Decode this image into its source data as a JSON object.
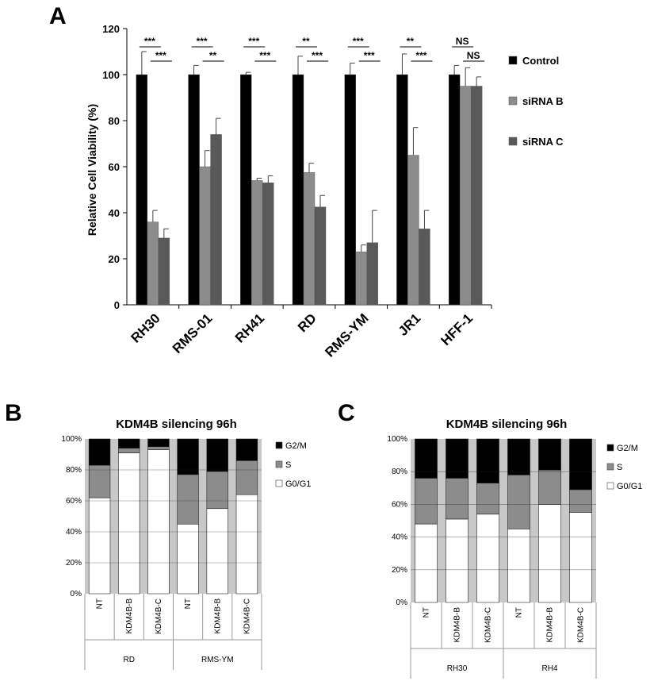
{
  "chart_data": [
    {
      "panel": "A",
      "type": "bar",
      "title": "",
      "xlabel": "",
      "ylabel": "Relative Cell Viability (%)",
      "ylim": [
        0,
        120
      ],
      "yticks": [
        0,
        20,
        40,
        60,
        80,
        100,
        120
      ],
      "categories": [
        "RH30",
        "RMS-01",
        "RH41",
        "RD",
        "RMS-YM",
        "JR1",
        "HFF-1"
      ],
      "series": [
        {
          "name": "Control",
          "color": "#000000",
          "values": [
            100,
            100,
            100,
            100,
            100,
            100,
            100
          ],
          "errors": [
            10,
            4,
            1,
            8,
            5,
            9,
            4
          ]
        },
        {
          "name": "siRNA B",
          "color": "#8c8c8c",
          "values": [
            36,
            60,
            54,
            57.5,
            23,
            65,
            95
          ],
          "errors": [
            5,
            7,
            1,
            4,
            3,
            12,
            8
          ]
        },
        {
          "name": "siRNA C",
          "color": "#595959",
          "values": [
            29,
            74,
            53,
            42.5,
            27,
            33,
            95
          ],
          "errors": [
            4,
            7,
            3,
            5,
            14,
            8,
            4
          ]
        }
      ],
      "significance": [
        {
          "category": "RH30",
          "control_vs_b": "***",
          "control_vs_c": "***"
        },
        {
          "category": "RMS-01",
          "control_vs_b": "***",
          "control_vs_c": "**"
        },
        {
          "category": "RH41",
          "control_vs_b": "***",
          "control_vs_c": "***"
        },
        {
          "category": "RD",
          "control_vs_b": "**",
          "control_vs_c": "***"
        },
        {
          "category": "RMS-YM",
          "control_vs_b": "***",
          "control_vs_c": "***"
        },
        {
          "category": "JR1",
          "control_vs_b": "**",
          "control_vs_c": "***"
        },
        {
          "category": "HFF-1",
          "control_vs_b": "NS",
          "control_vs_c": "NS"
        }
      ],
      "legend": "right"
    },
    {
      "panel": "B",
      "type": "bar",
      "stacked": true,
      "title": "KDM4B silencing 96h",
      "ylim": [
        0,
        100
      ],
      "yticks": [
        "0%",
        "20%",
        "40%",
        "60%",
        "80%",
        "100%"
      ],
      "categories": [
        "NT",
        "KDM4B-B",
        "KDM4B-C",
        "NT",
        "KDM4B-B",
        "KDM4B-C"
      ],
      "groups": [
        {
          "name": "RD",
          "size": 3
        },
        {
          "name": "RMS-YM",
          "size": 3
        }
      ],
      "series": [
        {
          "name": "G0/G1",
          "color": "#ffffff",
          "values": [
            62,
            91,
            93,
            45,
            55,
            64
          ]
        },
        {
          "name": "S",
          "color": "#8c8c8c",
          "values": [
            21,
            3,
            2,
            32,
            24,
            22
          ]
        },
        {
          "name": "G2/M",
          "color": "#000000",
          "values": [
            17,
            6,
            5,
            23,
            21,
            14
          ]
        }
      ],
      "legend": "right"
    },
    {
      "panel": "C",
      "type": "bar",
      "stacked": true,
      "title": "KDM4B silencing 96h",
      "ylim": [
        0,
        100
      ],
      "yticks": [
        "0%",
        "20%",
        "40%",
        "60%",
        "80%",
        "100%"
      ],
      "categories": [
        "NT",
        "KDM4B-B",
        "KDM4B-C",
        "NT",
        "KDM4B-B",
        "KDM4B-C"
      ],
      "groups": [
        {
          "name": "RH30",
          "size": 3
        },
        {
          "name": "RH4",
          "size": 3
        }
      ],
      "series": [
        {
          "name": "G0/G1",
          "color": "#ffffff",
          "values": [
            48,
            51,
            54,
            45,
            60,
            55
          ]
        },
        {
          "name": "S",
          "color": "#8c8c8c",
          "values": [
            28,
            25,
            19,
            33,
            21,
            14
          ]
        },
        {
          "name": "G2/M",
          "color": "#000000",
          "values": [
            24,
            24,
            27,
            22,
            19,
            31
          ]
        }
      ],
      "legend": "right"
    }
  ]
}
